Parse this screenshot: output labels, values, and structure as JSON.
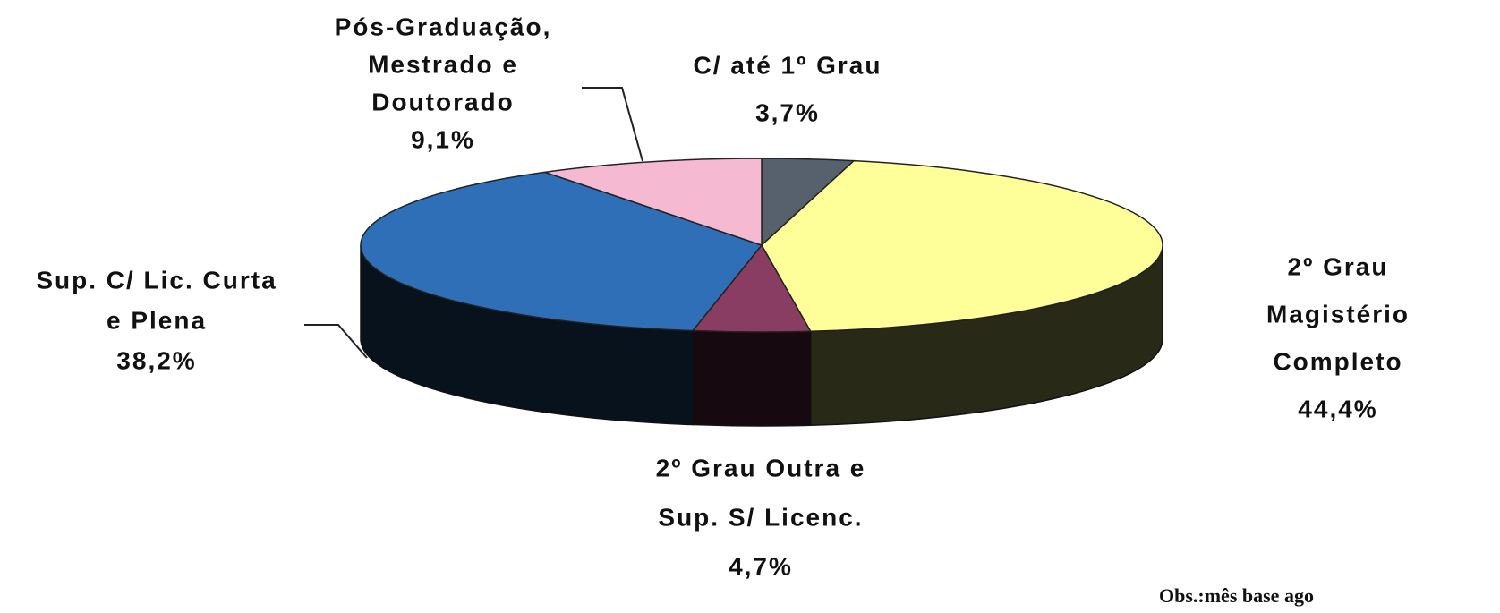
{
  "chart_data": {
    "type": "pie3d",
    "categories": [
      [
        "C/ até 1º Grau"
      ],
      [
        "2º Grau",
        "Magistério",
        "Completo"
      ],
      [
        "2º Grau Outra e",
        "Sup. S/ Licenc."
      ],
      [
        "Sup. C/ Lic. Curta",
        "e Plena"
      ],
      [
        "Pós-Graduação,",
        "Mestrado e",
        "Doutorado"
      ]
    ],
    "values": [
      3.7,
      44.4,
      4.7,
      38.2,
      9.1
    ],
    "value_labels": [
      "3,7%",
      "44,4%",
      "4,7%",
      "38,2%",
      "9,1%"
    ],
    "colors": [
      "#56616d",
      "#ffff99",
      "#8a3d62",
      "#2f6fb7",
      "#f5b9d2"
    ],
    "note": "Obs.:mês base ago"
  }
}
